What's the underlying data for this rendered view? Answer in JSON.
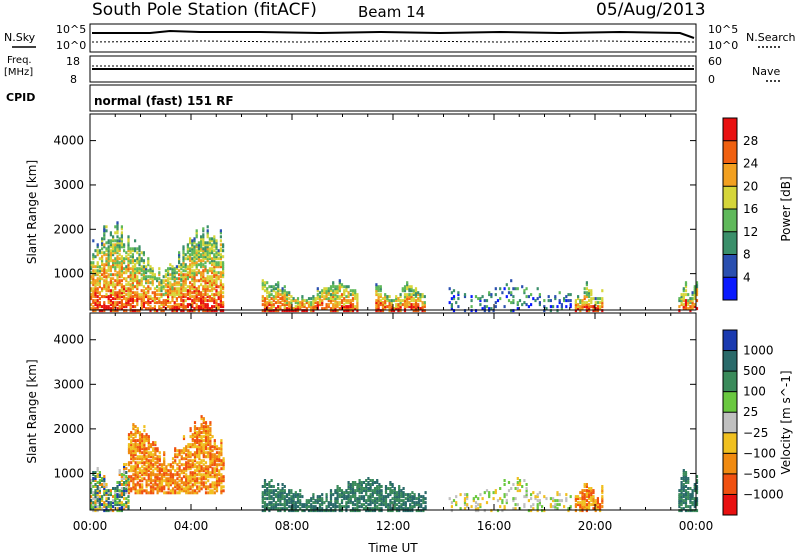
{
  "header": {
    "station": "South Pole Station (fitACF)",
    "beam": "Beam 14",
    "date": "05/Aug/2013"
  },
  "left_labels": {
    "nsky": "N.Sky",
    "freq_line1": "Freq.",
    "freq_line2": "[MHz]",
    "cpid": "CPID"
  },
  "right_labels": {
    "nsearch": "N.Search",
    "nave": "Nave"
  },
  "scales": {
    "noise_top_left": "10^5",
    "noise_bottom_left": "10^0",
    "noise_top_right": "10^5",
    "noise_bottom_right": "10^0",
    "freq_top": "18",
    "freq_bottom": "8",
    "nave_top": "60",
    "nave_bottom": "0"
  },
  "cpid_text": "normal (fast) 151 RF",
  "chart_data": [
    {
      "type": "heatmap",
      "panel": "power",
      "xlabel": "Time UT",
      "ylabel": "Slant Range [km]",
      "x_ticks": [
        "00:00",
        "04:00",
        "08:00",
        "12:00",
        "16:00",
        "20:00",
        "00:00"
      ],
      "y_ticks": [
        "1000",
        "2000",
        "3000",
        "4000"
      ],
      "xlim_hours": [
        0,
        24
      ],
      "ylim_km": [
        180,
        4600
      ],
      "colorbar": {
        "label": "Power [dB]",
        "ticks": [
          "4",
          "8",
          "12",
          "16",
          "20",
          "24",
          "28"
        ],
        "colors": [
          "#0a1aff",
          "#2a4fb0",
          "#3a8f6a",
          "#5fb85a",
          "#d6d63a",
          "#f2a020",
          "#f06010",
          "#e81010"
        ]
      },
      "echo_regions": [
        {
          "t_start": 0.0,
          "t_end": 5.3,
          "range_min": 200,
          "range_max": 2200,
          "level": "high"
        },
        {
          "t_start": 6.8,
          "t_end": 10.6,
          "range_min": 200,
          "range_max": 900,
          "level": "high"
        },
        {
          "t_start": 11.3,
          "t_end": 13.3,
          "range_min": 200,
          "range_max": 850,
          "level": "high"
        },
        {
          "t_start": 14.2,
          "t_end": 19.0,
          "range_min": 200,
          "range_max": 950,
          "level": "low"
        },
        {
          "t_start": 19.2,
          "t_end": 20.3,
          "range_min": 200,
          "range_max": 900,
          "level": "high"
        },
        {
          "t_start": 23.3,
          "t_end": 24.0,
          "range_min": 200,
          "range_max": 900,
          "level": "high"
        }
      ]
    },
    {
      "type": "heatmap",
      "panel": "velocity",
      "xlabel": "Time UT",
      "ylabel": "Slant Range [km]",
      "x_ticks": [
        "00:00",
        "04:00",
        "08:00",
        "12:00",
        "16:00",
        "20:00",
        "00:00"
      ],
      "y_ticks": [
        "1000",
        "2000",
        "3000",
        "4000"
      ],
      "xlim_hours": [
        0,
        24
      ],
      "ylim_km": [
        180,
        4600
      ],
      "colorbar": {
        "label": "Velocity [m s^-1]",
        "ticks": [
          "1000",
          "500",
          "100",
          "25",
          "−25",
          "−100",
          "−500",
          "−1000"
        ],
        "colors": [
          "#1a3ab0",
          "#2a6a6a",
          "#3a8a5a",
          "#6ac840",
          "#c0c0c0",
          "#f0c020",
          "#f08a10",
          "#f05010",
          "#e81010"
        ]
      },
      "echo_regions": [
        {
          "t_start": 0.0,
          "t_end": 1.5,
          "range_min": 200,
          "range_max": 1300,
          "level": "mixed"
        },
        {
          "t_start": 1.5,
          "t_end": 5.3,
          "range_min": 600,
          "range_max": 2300,
          "level": "negative"
        },
        {
          "t_start": 6.8,
          "t_end": 13.3,
          "range_min": 200,
          "range_max": 950,
          "level": "positive"
        },
        {
          "t_start": 14.2,
          "t_end": 19.0,
          "range_min": 200,
          "range_max": 950,
          "level": "low"
        },
        {
          "t_start": 19.2,
          "t_end": 20.3,
          "range_min": 200,
          "range_max": 900,
          "level": "negative"
        },
        {
          "t_start": 23.3,
          "t_end": 24.0,
          "range_min": 200,
          "range_max": 1200,
          "level": "positive"
        }
      ]
    }
  ]
}
